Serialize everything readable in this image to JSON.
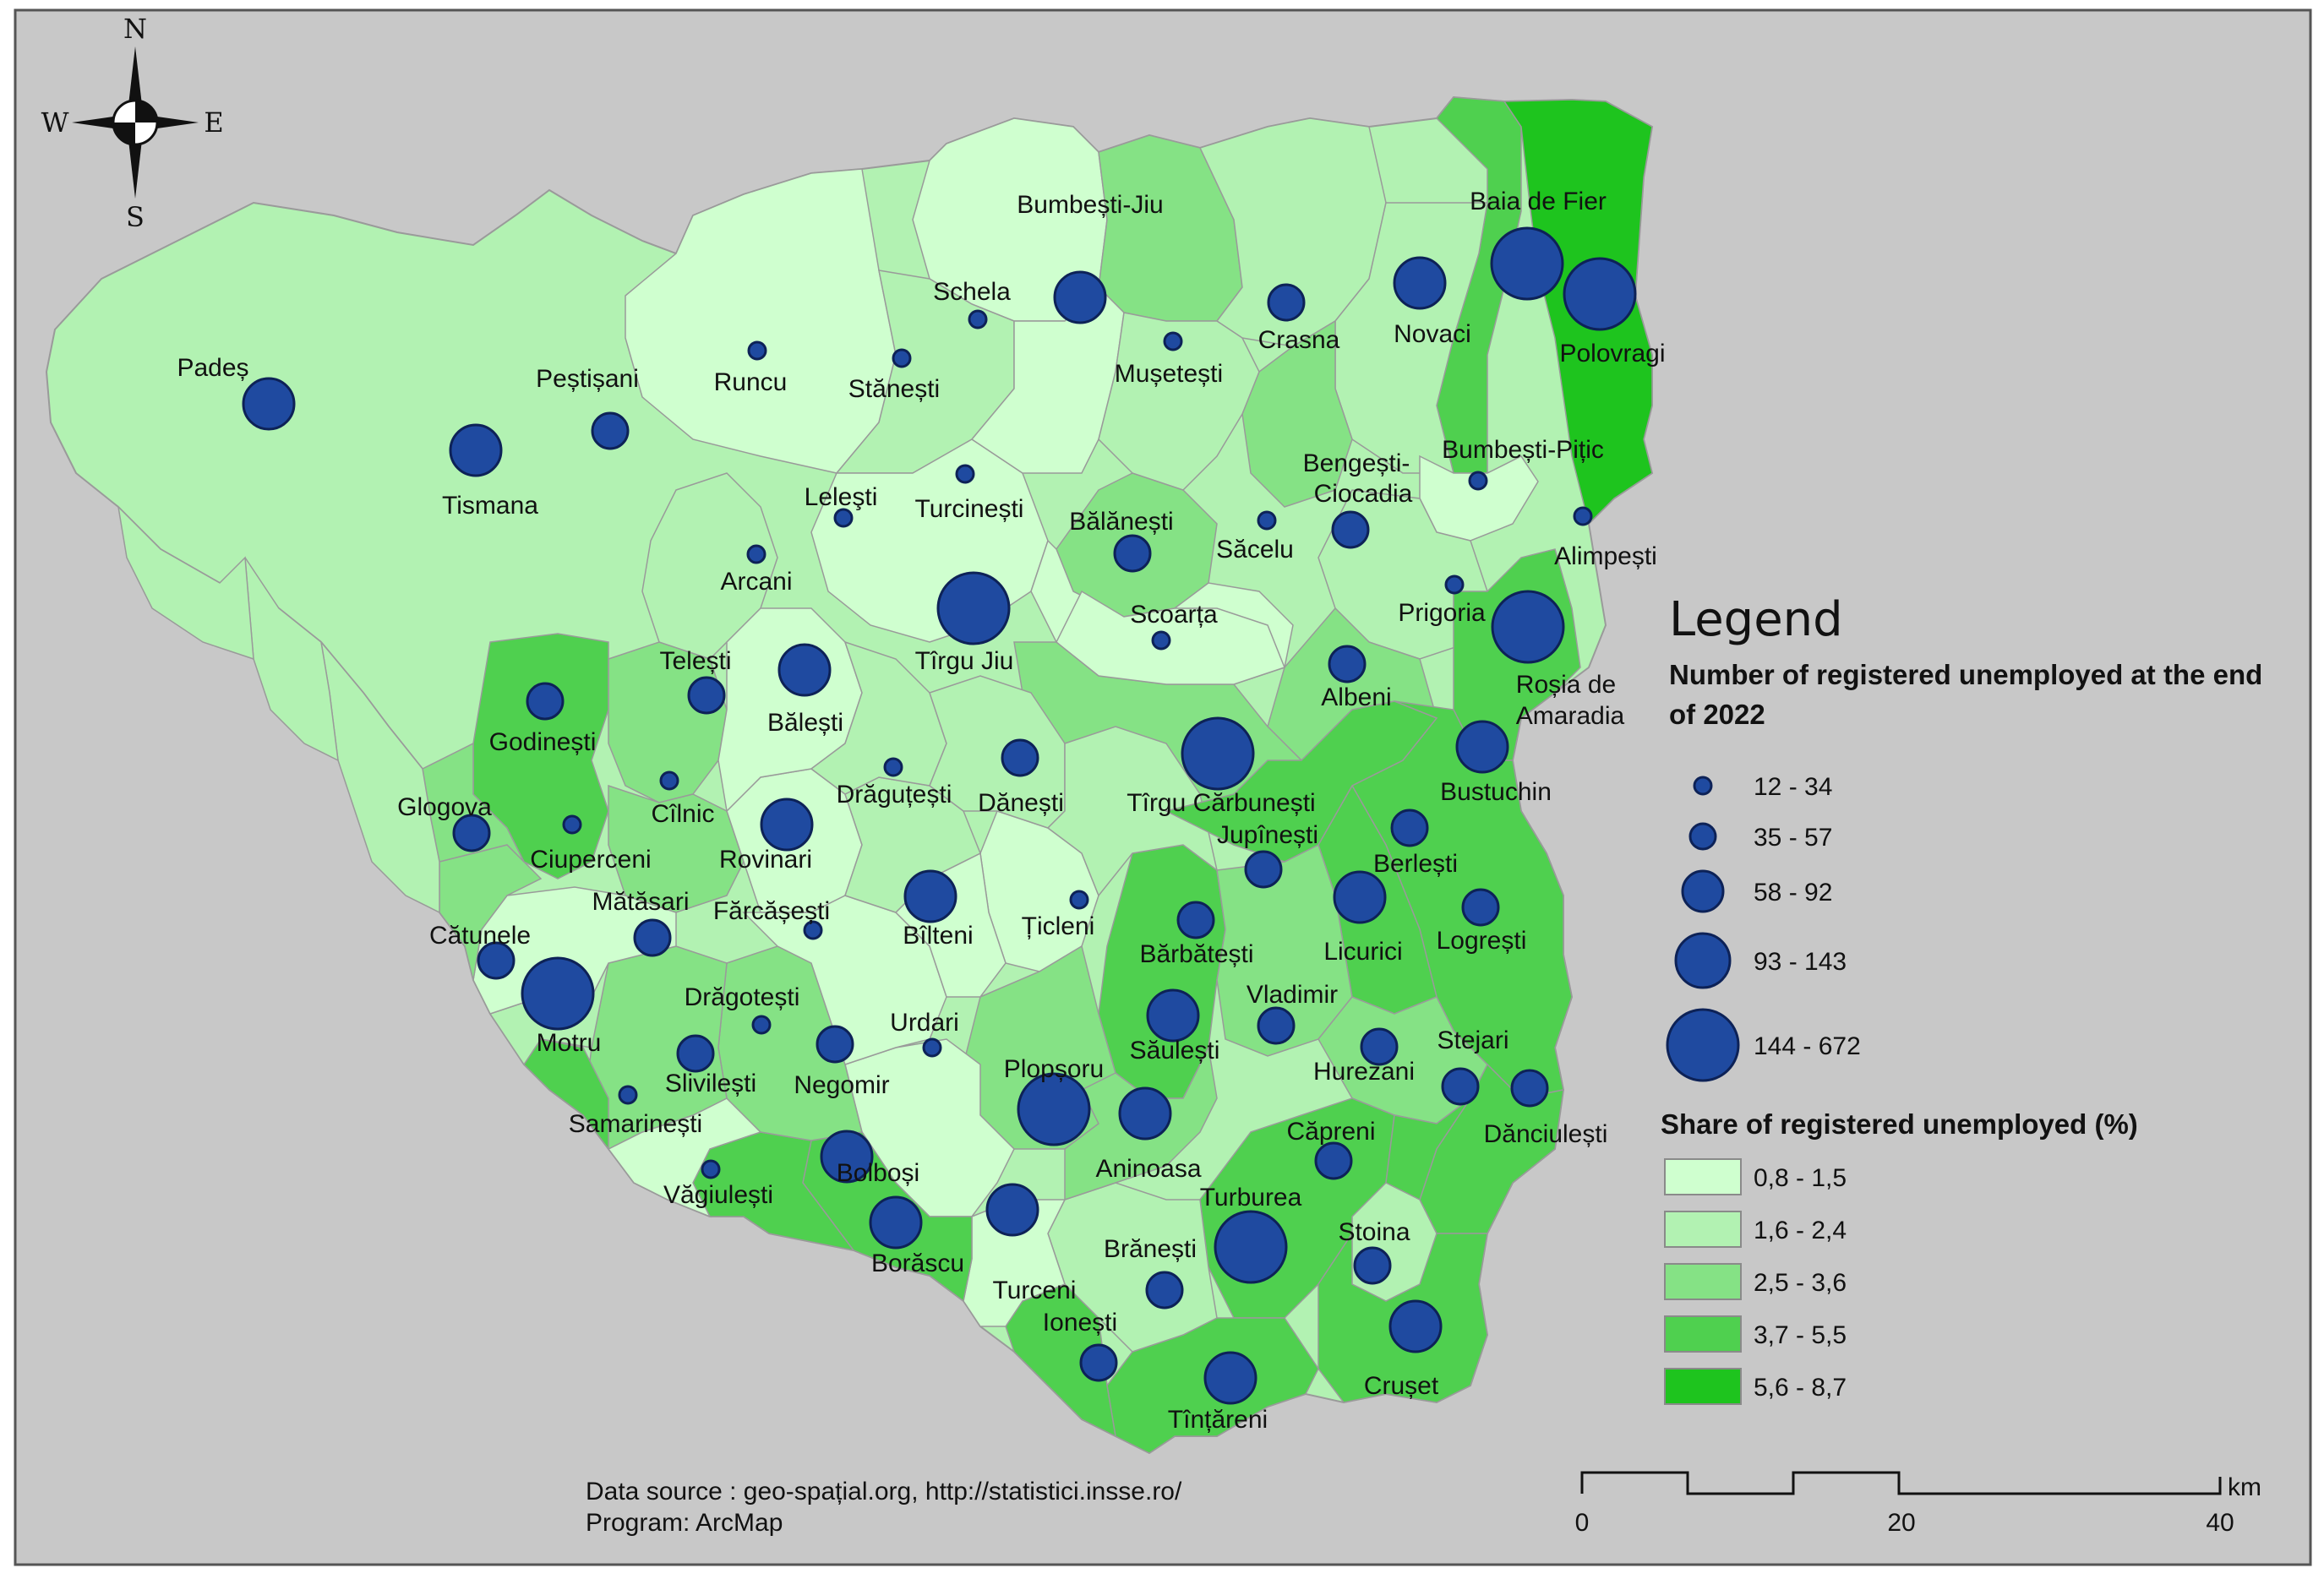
{
  "legend": {
    "title": "Legend",
    "size_title": "Number of registered unemployed at the end of 2022",
    "size_classes": [
      "12 - 34",
      "35 - 57",
      "58 - 92",
      "93 - 143",
      "144 - 672"
    ],
    "share_title": "Share of registered unemployed (%)",
    "share_classes": [
      {
        "label": "0,8 - 1,5",
        "color": "#cfffcf"
      },
      {
        "label": "1,6 - 2,4",
        "color": "#b2f2b2"
      },
      {
        "label": "2,5 - 3,6",
        "color": "#85e285"
      },
      {
        "label": "3,7 - 5,5",
        "color": "#4fd04f"
      },
      {
        "label": "5,6 - 8,7",
        "color": "#1ec41e"
      }
    ]
  },
  "compass": {
    "n": "N",
    "s": "S",
    "e": "E",
    "w": "W"
  },
  "footer": {
    "source": "Data source : geo-spațial.org, http://statistici.insse.ro/",
    "program": "Program: ArcMap"
  },
  "scale": {
    "ticks": [
      "0",
      "20",
      "40"
    ],
    "unit": "km"
  },
  "colors": {
    "background": "#c8c8c8",
    "symbol": "#1f4aa0",
    "border": "#888888"
  },
  "places": [
    {
      "name": "Padeș",
      "size_class": 4,
      "share_class": 1
    },
    {
      "name": "Tismana",
      "size_class": 4,
      "share_class": 1
    },
    {
      "name": "Peștișani",
      "size_class": 3,
      "share_class": 1
    },
    {
      "name": "Runcu",
      "size_class": 1,
      "share_class": 0
    },
    {
      "name": "Schela",
      "size_class": 1,
      "share_class": 0
    },
    {
      "name": "Stănești",
      "size_class": 1,
      "share_class": 1
    },
    {
      "name": "Bumbești-Jiu",
      "size_class": 4,
      "share_class": 0
    },
    {
      "name": "Mușetești",
      "size_class": 1,
      "share_class": 1
    },
    {
      "name": "Crasna",
      "size_class": 3,
      "share_class": 1
    },
    {
      "name": "Novaci",
      "size_class": 4,
      "share_class": 1
    },
    {
      "name": "Baia de Fier",
      "size_class": 5,
      "share_class": 3
    },
    {
      "name": "Polovragi",
      "size_class": 5,
      "share_class": 4
    },
    {
      "name": "Leleşti",
      "size_class": 1,
      "share_class": 0
    },
    {
      "name": "Turcinești",
      "size_class": 1,
      "share_class": 0
    },
    {
      "name": "Arcani",
      "size_class": 1,
      "share_class": 1
    },
    {
      "name": "Bălănești",
      "size_class": 3,
      "share_class": 2
    },
    {
      "name": "Săcelu",
      "size_class": 1,
      "share_class": 2
    },
    {
      "name": "Bengești-Ciocadia",
      "size_class": 3,
      "share_class": 2
    },
    {
      "name": "Bumbești-Pițic",
      "size_class": 1,
      "share_class": 0
    },
    {
      "name": "Alimpești",
      "size_class": 1,
      "share_class": 2
    },
    {
      "name": "Prigoria",
      "size_class": 1,
      "share_class": 1
    },
    {
      "name": "Roșia de Amaradia",
      "size_class": 5,
      "share_class": 3
    },
    {
      "name": "Tîrgu Jiu",
      "size_class": 5,
      "share_class": 1
    },
    {
      "name": "Scoarța",
      "size_class": 1,
      "share_class": 0
    },
    {
      "name": "Telești",
      "size_class": 3,
      "share_class": 1
    },
    {
      "name": "Bălești",
      "size_class": 4,
      "share_class": 0
    },
    {
      "name": "Albeni",
      "size_class": 3,
      "share_class": 2
    },
    {
      "name": "Godinești",
      "size_class": 3,
      "share_class": 3
    },
    {
      "name": "Drăguțești",
      "size_class": 1,
      "share_class": 0
    },
    {
      "name": "Dănești",
      "size_class": 3,
      "share_class": 1
    },
    {
      "name": "Tîrgu Cărbunești",
      "size_class": 5,
      "share_class": 1
    },
    {
      "name": "Bustuchin",
      "size_class": 4,
      "share_class": 3
    },
    {
      "name": "Glogova",
      "size_class": 3,
      "share_class": 2
    },
    {
      "name": "Cîlnic",
      "size_class": 1,
      "share_class": 2
    },
    {
      "name": "Ciuperceni",
      "size_class": 1,
      "share_class": 3
    },
    {
      "name": "Rovinari",
      "size_class": 4,
      "share_class": 0
    },
    {
      "name": "Jupînești",
      "size_class": 3,
      "share_class": 2
    },
    {
      "name": "Berlești",
      "size_class": 3,
      "share_class": 3
    },
    {
      "name": "Mătăsari",
      "size_class": 3,
      "share_class": 0
    },
    {
      "name": "Fărcășești",
      "size_class": 1,
      "share_class": 0
    },
    {
      "name": "Bîlteni",
      "size_class": 4,
      "share_class": 1
    },
    {
      "name": "Țicleni",
      "size_class": 1,
      "share_class": 0
    },
    {
      "name": "Licurici",
      "size_class": 4,
      "share_class": 3
    },
    {
      "name": "Logrești",
      "size_class": 3,
      "share_class": 3
    },
    {
      "name": "Cătunele",
      "size_class": 3,
      "share_class": 2
    },
    {
      "name": "Bărbătești",
      "size_class": 3,
      "share_class": 3
    },
    {
      "name": "Motru",
      "size_class": 5,
      "share_class": 1
    },
    {
      "name": "Drăgotești",
      "size_class": 1,
      "share_class": 1
    },
    {
      "name": "Vladimir",
      "size_class": 3,
      "share_class": 2
    },
    {
      "name": "Negomir",
      "size_class": 3,
      "share_class": 2
    },
    {
      "name": "Urdari",
      "size_class": 1,
      "share_class": 0
    },
    {
      "name": "Săulești",
      "size_class": 4,
      "share_class": 3
    },
    {
      "name": "Hurezani",
      "size_class": 3,
      "share_class": 2
    },
    {
      "name": "Stejari",
      "size_class": 3,
      "share_class": 3
    },
    {
      "name": "Slivilești",
      "size_class": 3,
      "share_class": 2
    },
    {
      "name": "Samarinești",
      "size_class": 1,
      "share_class": 3
    },
    {
      "name": "Plopșoru",
      "size_class": 5,
      "share_class": 2
    },
    {
      "name": "Aninoasa",
      "size_class": 4,
      "share_class": 2
    },
    {
      "name": "Dănciulești",
      "size_class": 3,
      "share_class": 3
    },
    {
      "name": "Căpreni",
      "size_class": 3,
      "share_class": 3
    },
    {
      "name": "Văgiulești",
      "size_class": 1,
      "share_class": 0
    },
    {
      "name": "Bolboși",
      "size_class": 4,
      "share_class": 3
    },
    {
      "name": "Turburea",
      "size_class": 5,
      "share_class": 3
    },
    {
      "name": "Borăscu",
      "size_class": 4,
      "share_class": 3
    },
    {
      "name": "Stoina",
      "size_class": 3,
      "share_class": 2
    },
    {
      "name": "Brănești",
      "size_class": 3,
      "share_class": 1
    },
    {
      "name": "Turceni",
      "size_class": 4,
      "share_class": 0
    },
    {
      "name": "Ionești",
      "size_class": 3,
      "share_class": 3
    },
    {
      "name": "Crușet",
      "size_class": 4,
      "share_class": 3
    },
    {
      "name": "Tînțăreni",
      "size_class": 4,
      "share_class": 3
    }
  ]
}
